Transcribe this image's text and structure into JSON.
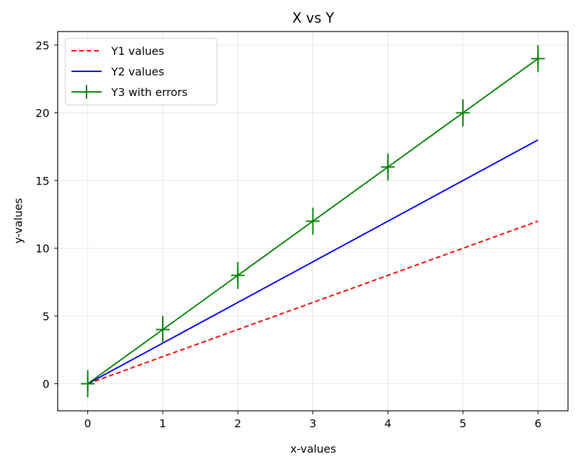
{
  "chart_data": {
    "type": "line",
    "title": "X vs Y",
    "xlabel": "x-values",
    "ylabel": "y-values",
    "xlim": [
      -0.4,
      6.4
    ],
    "ylim": [
      -2,
      26
    ],
    "xticks": [
      0,
      1,
      2,
      3,
      4,
      5,
      6
    ],
    "yticks": [
      0,
      5,
      10,
      15,
      20,
      25
    ],
    "grid": true,
    "legend_position": "top-left",
    "x": [
      0,
      1,
      2,
      3,
      4,
      5,
      6
    ],
    "series": [
      {
        "name": "Y1 values",
        "values": [
          0,
          2,
          4,
          6,
          8,
          10,
          12
        ],
        "color": "#ff0000",
        "style": "dashed"
      },
      {
        "name": "Y2 values",
        "values": [
          0,
          3,
          6,
          9,
          12,
          15,
          18
        ],
        "color": "#0000ff",
        "style": "solid"
      },
      {
        "name": "Y3 with errors",
        "values": [
          0,
          4,
          8,
          12,
          16,
          20,
          24
        ],
        "yerr": [
          1,
          1,
          1,
          1,
          1,
          1,
          1
        ],
        "color": "#008000",
        "style": "solid",
        "marker": "+"
      }
    ]
  }
}
